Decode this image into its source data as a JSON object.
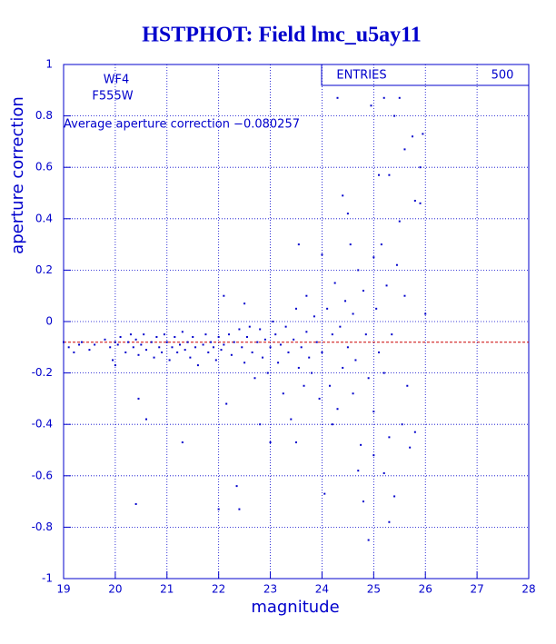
{
  "chart_data": {
    "type": "scatter",
    "title": "HSTPHOT: Field lmc_u5ay11",
    "x_label": "magnitude",
    "y_label": "aperture correction",
    "filter_labels": [
      "WF4",
      "F555W"
    ],
    "annotation": "Average aperture correction −0.080257",
    "reference_line": -0.080257,
    "stats": {
      "label": "ENTRIES",
      "value": 500
    },
    "xlim": [
      19,
      28
    ],
    "ylim": [
      -1,
      1
    ],
    "xticks": [
      19,
      20,
      21,
      22,
      23,
      24,
      25,
      26,
      27,
      28
    ],
    "yticks": [
      -1,
      -0.8,
      -0.6,
      -0.4,
      -0.2,
      0,
      0.2,
      0.4,
      0.6,
      0.8,
      1
    ],
    "grid": true,
    "color": "#0000cc",
    "reference_color": "#cc0000",
    "x": [
      19.0,
      19.1,
      19.2,
      19.3,
      19.35,
      19.5,
      19.6,
      19.8,
      19.9,
      19.95,
      20.0,
      20.0,
      20.05,
      20.1,
      20.2,
      20.25,
      20.3,
      20.35,
      20.4,
      20.45,
      20.45,
      20.5,
      20.55,
      20.6,
      20.6,
      20.4,
      20.7,
      20.75,
      20.8,
      20.85,
      20.9,
      20.95,
      21.0,
      21.05,
      21.1,
      21.15,
      21.2,
      21.25,
      21.3,
      21.3,
      21.35,
      21.4,
      21.45,
      21.5,
      21.55,
      21.6,
      21.7,
      21.75,
      21.8,
      21.85,
      21.9,
      21.95,
      22.0,
      22.0,
      22.05,
      22.1,
      22.1,
      22.15,
      22.2,
      22.25,
      22.3,
      22.35,
      22.4,
      22.4,
      22.45,
      22.5,
      22.5,
      22.55,
      22.6,
      22.65,
      22.7,
      22.75,
      22.8,
      22.8,
      22.85,
      22.9,
      22.95,
      23.0,
      23.0,
      23.05,
      23.1,
      23.15,
      23.2,
      23.25,
      23.3,
      23.35,
      23.4,
      23.45,
      23.5,
      23.55,
      23.55,
      23.6,
      23.65,
      23.7,
      23.7,
      23.75,
      23.8,
      23.85,
      23.9,
      23.95,
      23.5,
      24.0,
      24.0,
      24.05,
      24.1,
      24.15,
      24.2,
      24.25,
      24.3,
      24.3,
      24.35,
      24.4,
      24.4,
      24.45,
      24.5,
      24.5,
      24.55,
      24.6,
      24.6,
      24.65,
      24.7,
      24.75,
      24.8,
      24.8,
      24.85,
      24.9,
      24.9,
      24.95,
      25.0,
      25.0,
      25.0,
      25.05,
      25.1,
      25.1,
      25.15,
      25.2,
      25.2,
      25.2,
      25.25,
      25.3,
      25.3,
      25.35,
      25.4,
      25.4,
      25.45,
      25.5,
      25.5,
      25.55,
      25.6,
      25.65,
      25.7,
      25.75,
      25.8,
      25.8,
      25.9,
      25.9,
      25.95,
      26.0,
      25.6,
      24.2,
      24.7,
      25.3
    ],
    "y": [
      -0.08,
      -0.1,
      -0.12,
      -0.09,
      -0.08,
      -0.11,
      -0.09,
      -0.07,
      -0.1,
      -0.15,
      -0.08,
      -0.17,
      -0.09,
      -0.06,
      -0.12,
      -0.08,
      -0.05,
      -0.1,
      -0.07,
      -0.13,
      -0.3,
      -0.09,
      -0.05,
      -0.11,
      -0.38,
      -0.71,
      -0.08,
      -0.14,
      -0.06,
      -0.1,
      -0.12,
      -0.05,
      -0.08,
      -0.15,
      -0.1,
      -0.06,
      -0.12,
      -0.09,
      -0.04,
      -0.47,
      -0.11,
      -0.08,
      -0.14,
      -0.06,
      -0.1,
      -0.17,
      -0.09,
      -0.05,
      -0.12,
      -0.08,
      -0.1,
      -0.15,
      -0.06,
      -0.73,
      -0.11,
      0.1,
      -0.09,
      -0.32,
      -0.05,
      -0.13,
      -0.08,
      -0.64,
      -0.73,
      -0.03,
      -0.1,
      0.07,
      -0.16,
      -0.06,
      -0.02,
      -0.12,
      -0.22,
      -0.08,
      -0.4,
      -0.03,
      -0.14,
      -0.07,
      -0.2,
      -0.47,
      -0.1,
      0.0,
      -0.05,
      -0.16,
      -0.09,
      -0.28,
      -0.02,
      -0.12,
      -0.38,
      -0.07,
      0.05,
      0.3,
      -0.18,
      -0.1,
      -0.25,
      -0.04,
      0.1,
      -0.14,
      -0.2,
      0.02,
      -0.08,
      -0.3,
      -0.47,
      0.26,
      -0.12,
      -0.67,
      0.05,
      -0.25,
      -0.05,
      0.15,
      0.87,
      -0.34,
      -0.02,
      0.49,
      -0.18,
      0.08,
      0.42,
      -0.1,
      0.3,
      -0.28,
      0.03,
      -0.15,
      0.2,
      -0.48,
      -0.7,
      0.12,
      -0.05,
      -0.85,
      -0.22,
      0.84,
      -0.52,
      0.25,
      -0.35,
      0.05,
      0.57,
      -0.12,
      0.3,
      0.87,
      -0.59,
      -0.2,
      0.14,
      -0.78,
      0.57,
      -0.05,
      0.8,
      -0.68,
      0.22,
      0.87,
      0.39,
      -0.4,
      0.67,
      -0.25,
      -0.49,
      0.72,
      0.47,
      -0.43,
      0.6,
      0.46,
      0.73,
      0.03,
      0.1,
      -0.4,
      -0.58,
      -0.45
    ]
  }
}
